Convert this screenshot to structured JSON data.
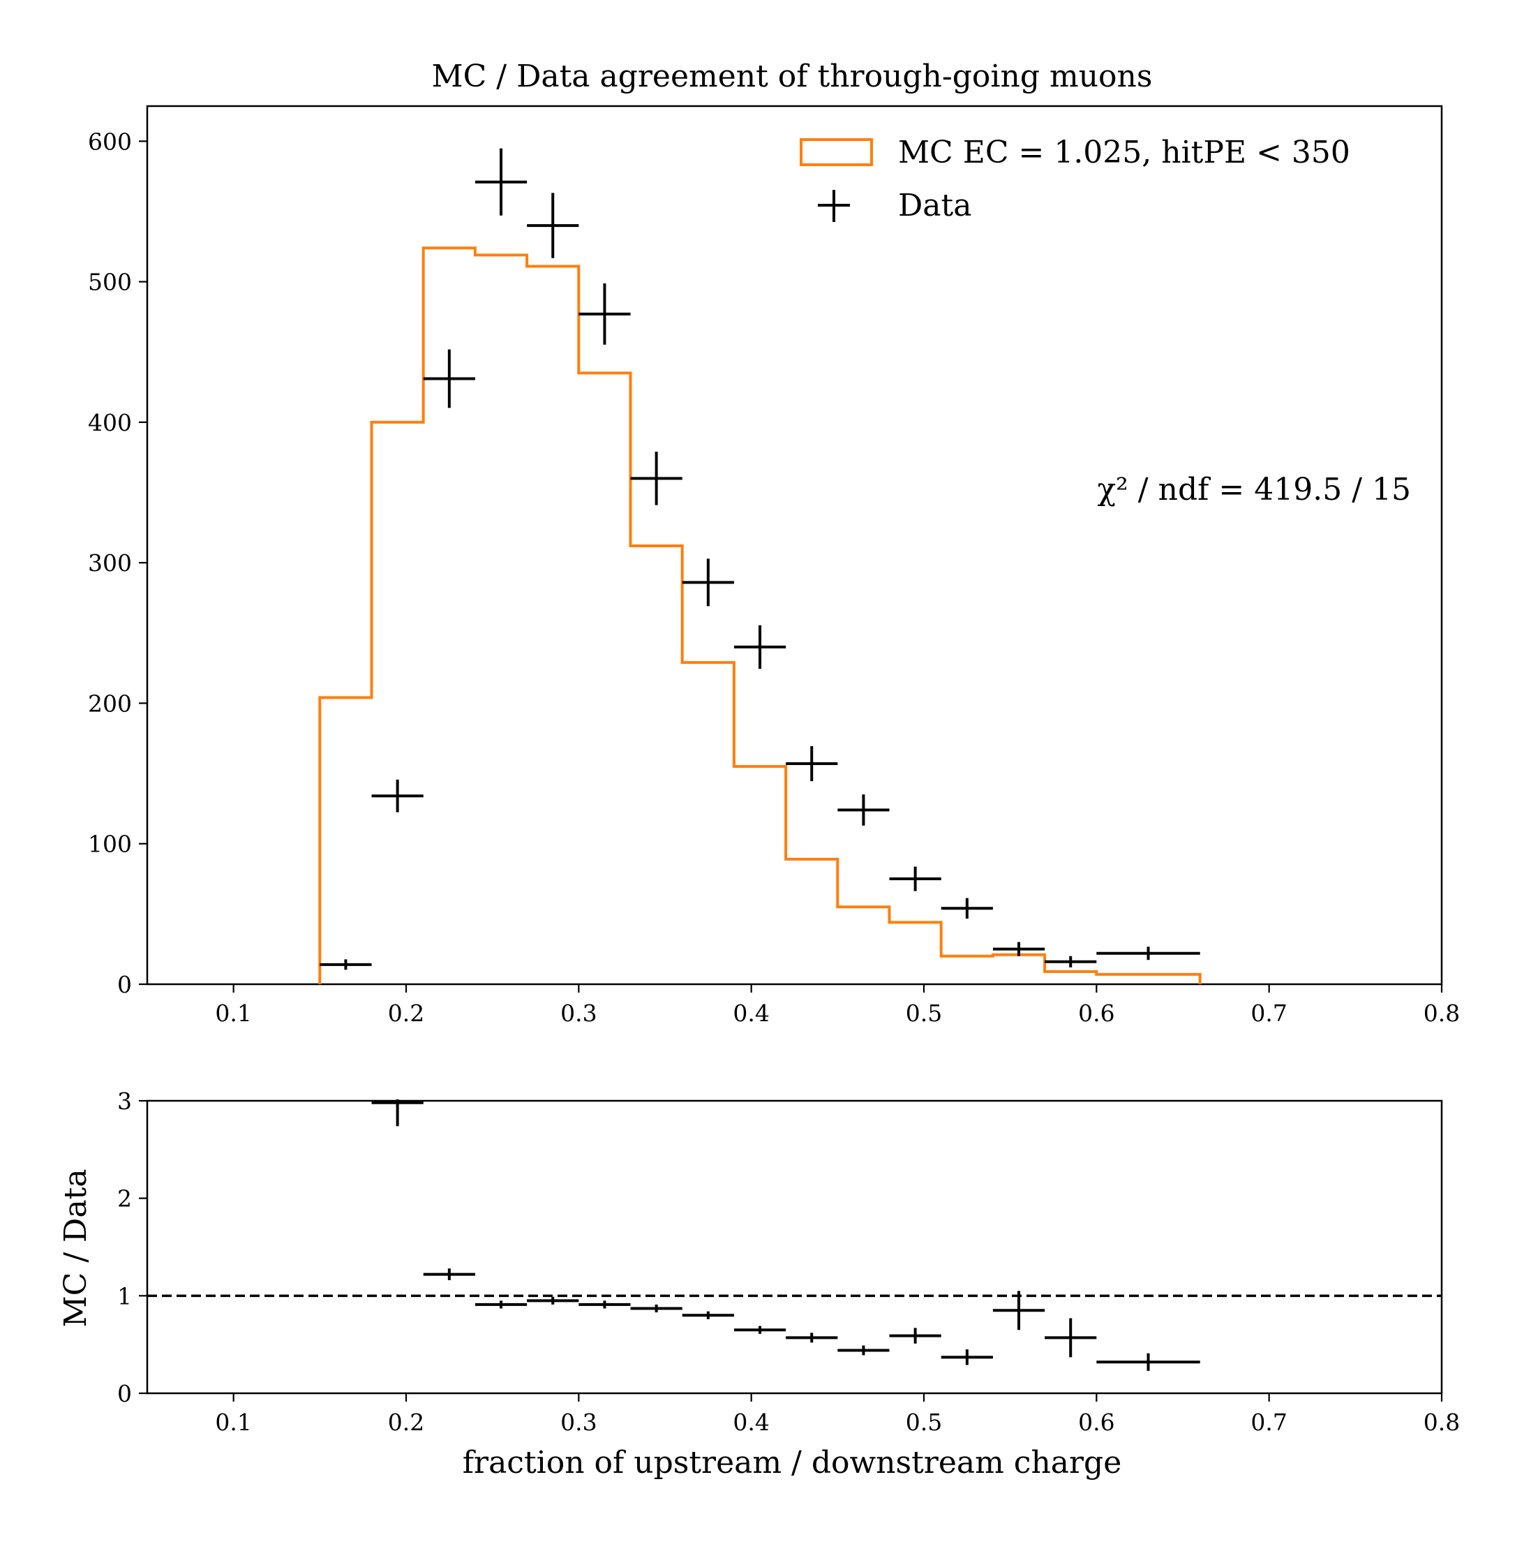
{
  "chart_data": {
    "type": "histogram-with-ratio",
    "title": "MC / Data agreement of through-going muons",
    "xlabel": "fraction of upstream / downstream charge",
    "xlim": [
      0.05,
      0.8
    ],
    "xticks": [
      "0.1",
      "0.2",
      "0.3",
      "0.4",
      "0.5",
      "0.6",
      "0.7",
      "0.8"
    ],
    "top_panel": {
      "ylim": [
        0,
        625
      ],
      "yticks": [
        "0",
        "100",
        "200",
        "300",
        "400",
        "500",
        "600"
      ],
      "series": [
        {
          "name": "MC EC = 1.025, hitPE < 350",
          "kind": "step",
          "color": "#ff7f0e",
          "bin_edges": [
            0.15,
            0.18,
            0.21,
            0.24,
            0.27,
            0.3,
            0.33,
            0.36,
            0.39,
            0.42,
            0.45,
            0.48,
            0.51,
            0.54,
            0.57,
            0.6,
            0.66
          ],
          "values": [
            204,
            400,
            524,
            519,
            511,
            435,
            312,
            229,
            155,
            89,
            55,
            44,
            20,
            21,
            9,
            7
          ]
        },
        {
          "name": "Data",
          "kind": "errorbar",
          "color": "#000000",
          "x": [
            0.165,
            0.195,
            0.225,
            0.255,
            0.285,
            0.315,
            0.345,
            0.375,
            0.405,
            0.435,
            0.465,
            0.495,
            0.525,
            0.555,
            0.585,
            0.63
          ],
          "xerr": [
            0.015,
            0.015,
            0.015,
            0.015,
            0.015,
            0.015,
            0.015,
            0.015,
            0.015,
            0.015,
            0.015,
            0.015,
            0.015,
            0.015,
            0.015,
            0.03
          ],
          "y": [
            14,
            134,
            431,
            571,
            540,
            477,
            360,
            286,
            240,
            157,
            124,
            75,
            54,
            25,
            16,
            22
          ],
          "yerr": [
            3.7,
            11.6,
            20.8,
            23.9,
            23.2,
            21.8,
            19.0,
            16.9,
            15.5,
            12.5,
            11.1,
            8.7,
            7.3,
            5.0,
            4.0,
            4.7
          ]
        }
      ],
      "legend_position": "top-right",
      "annotation": "χ² / ndf = 419.5 / 15"
    },
    "ratio_panel": {
      "ylabel": "MC / Data",
      "ylim": [
        0,
        3
      ],
      "yticks": [
        "0",
        "1",
        "2",
        "3"
      ],
      "reference_line": 1,
      "series": [
        {
          "name": "MC / Data",
          "kind": "errorbar",
          "color": "#000000",
          "x": [
            0.195,
            0.225,
            0.255,
            0.285,
            0.315,
            0.345,
            0.375,
            0.405,
            0.435,
            0.465,
            0.495,
            0.525,
            0.555,
            0.585,
            0.63
          ],
          "xerr": [
            0.015,
            0.015,
            0.015,
            0.015,
            0.015,
            0.015,
            0.015,
            0.015,
            0.015,
            0.015,
            0.015,
            0.015,
            0.015,
            0.015,
            0.03
          ],
          "y": [
            2.98,
            1.22,
            0.91,
            0.95,
            0.91,
            0.87,
            0.8,
            0.65,
            0.57,
            0.44,
            0.59,
            0.37,
            0.85,
            0.57,
            0.32
          ],
          "yerr": [
            0.24,
            0.06,
            0.04,
            0.04,
            0.04,
            0.04,
            0.04,
            0.04,
            0.05,
            0.05,
            0.08,
            0.08,
            0.2,
            0.2,
            0.09
          ]
        }
      ]
    }
  }
}
